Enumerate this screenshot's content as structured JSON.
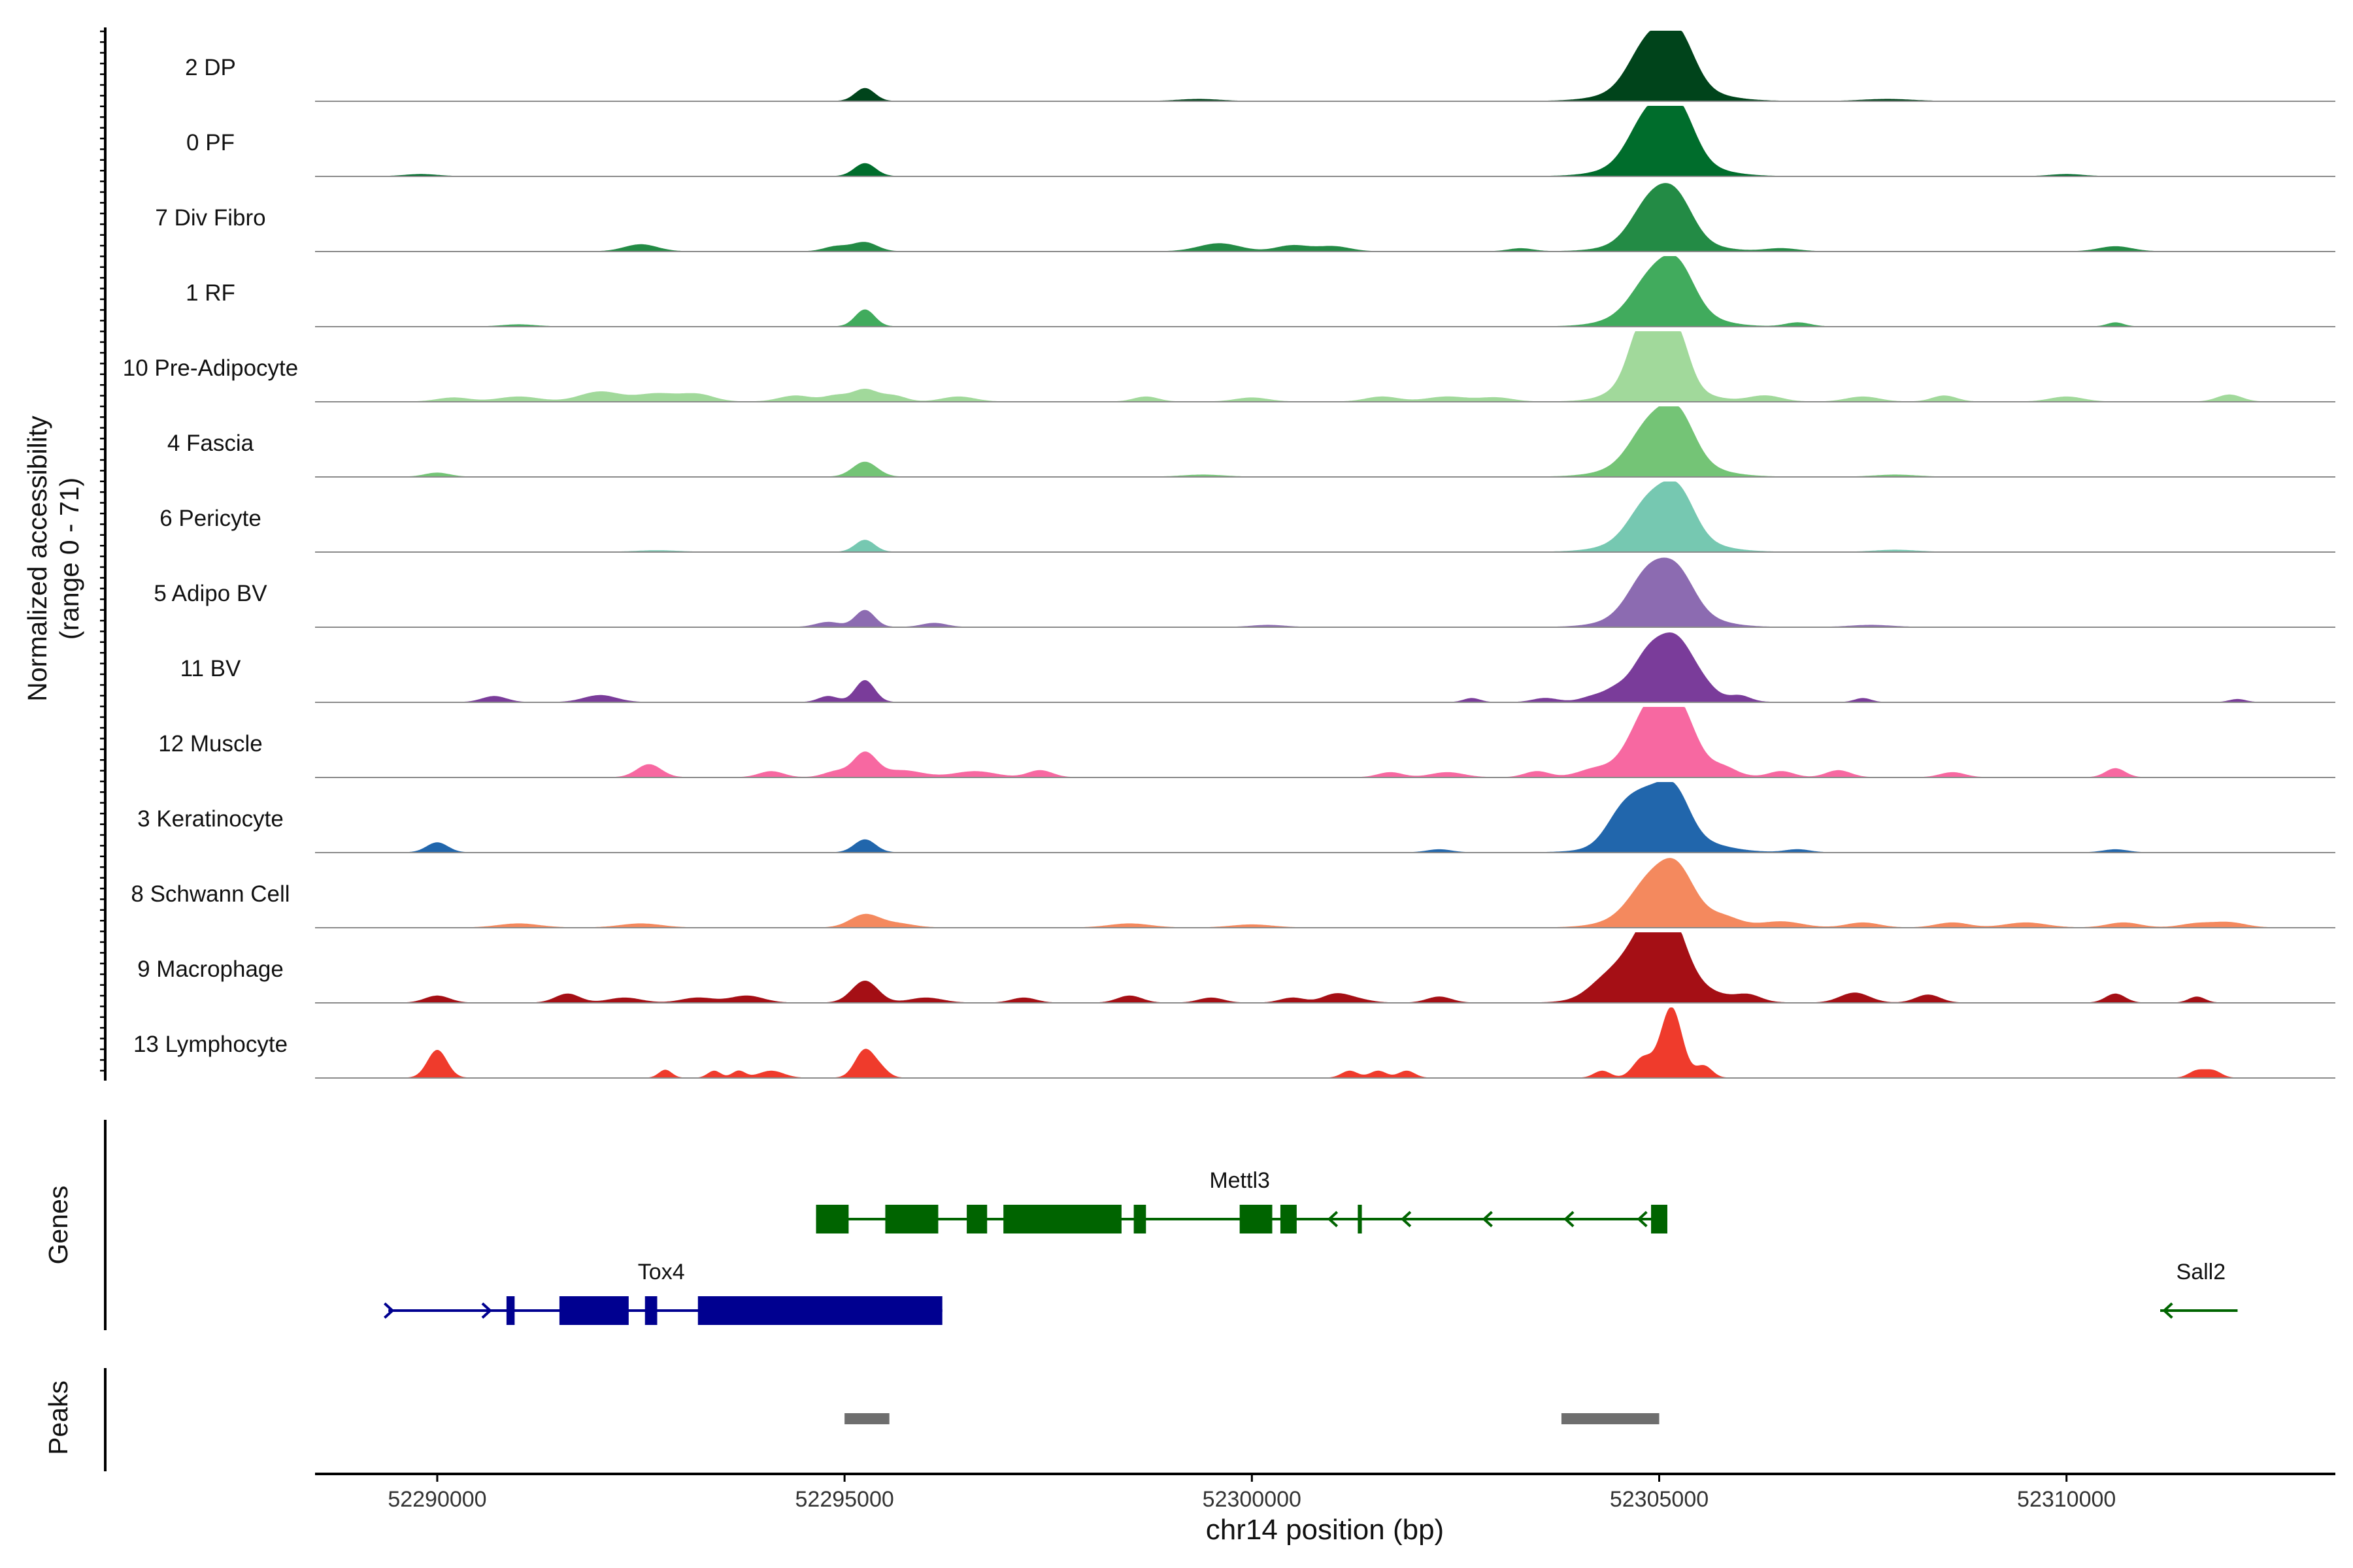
{
  "chart_data": {
    "type": "area",
    "title": "",
    "chromosome": "chr14",
    "xlabel": "chr14 position (bp)",
    "ylabel_line1": "Normalized accessibility",
    "ylabel_line2": "(range 0 - 71)",
    "y_range": [
      0,
      71
    ],
    "xlim": [
      52288500,
      52313300
    ],
    "x_ticks": [
      52290000,
      52295000,
      52300000,
      52305000,
      52310000
    ],
    "x_tick_labels": [
      "52290000",
      "52295000",
      "52300000",
      "52305000",
      "52310000"
    ],
    "panel_labels": {
      "genes": "Genes",
      "peaks": "Peaks"
    },
    "tracks": [
      {
        "name": "2 DP",
        "color": "#00441b",
        "peaks": [
          [
            52295250,
            13,
            120
          ],
          [
            52304870,
            44,
            230
          ],
          [
            52305240,
            46,
            200
          ],
          [
            52305050,
            18,
            500
          ],
          [
            52299350,
            2,
            250
          ],
          [
            52307800,
            2,
            300
          ]
        ]
      },
      {
        "name": "0 PF",
        "color": "#006d2c",
        "peaks": [
          [
            52295250,
            13,
            130
          ],
          [
            52304870,
            45,
            230
          ],
          [
            52305240,
            47,
            200
          ],
          [
            52305050,
            20,
            480
          ],
          [
            52289800,
            2,
            200
          ],
          [
            52310000,
            2,
            200
          ]
        ]
      },
      {
        "name": "7 Div Fibro",
        "color": "#238b45",
        "peaks": [
          [
            52292500,
            7,
            200
          ],
          [
            52294900,
            5,
            150
          ],
          [
            52295250,
            9,
            150
          ],
          [
            52299600,
            8,
            250
          ],
          [
            52300500,
            6,
            200
          ],
          [
            52301000,
            5,
            200
          ],
          [
            52304900,
            38,
            230
          ],
          [
            52305230,
            34,
            200
          ],
          [
            52305050,
            15,
            450
          ],
          [
            52303300,
            3,
            150
          ],
          [
            52306500,
            3,
            200
          ],
          [
            52310600,
            5,
            200
          ]
        ]
      },
      {
        "name": "1 RF",
        "color": "#41ab5d",
        "peaks": [
          [
            52295250,
            17,
            120
          ],
          [
            52304900,
            30,
            230
          ],
          [
            52305240,
            38,
            200
          ],
          [
            52305050,
            22,
            450
          ],
          [
            52306700,
            4,
            150
          ],
          [
            52310600,
            4,
            100
          ],
          [
            52291000,
            2,
            200
          ]
        ]
      },
      {
        "name": "10 Pre-Adipocyte",
        "color": "#a1d99b",
        "peaks": [
          [
            52290200,
            4,
            200
          ],
          [
            52291000,
            5,
            250
          ],
          [
            52292000,
            10,
            250
          ],
          [
            52292700,
            8,
            250
          ],
          [
            52293200,
            7,
            200
          ],
          [
            52294400,
            6,
            200
          ],
          [
            52294900,
            6,
            150
          ],
          [
            52295250,
            12,
            150
          ],
          [
            52295600,
            6,
            150
          ],
          [
            52296400,
            5,
            200
          ],
          [
            52298700,
            5,
            150
          ],
          [
            52300000,
            4,
            200
          ],
          [
            52301600,
            5,
            200
          ],
          [
            52302400,
            5,
            250
          ],
          [
            52303000,
            4,
            200
          ],
          [
            52304600,
            5,
            200
          ],
          [
            52304800,
            60,
            160
          ],
          [
            52305190,
            60,
            160
          ],
          [
            52305000,
            20,
            420
          ],
          [
            52306300,
            6,
            200
          ],
          [
            52307500,
            5,
            200
          ],
          [
            52308500,
            6,
            150
          ],
          [
            52310000,
            5,
            200
          ],
          [
            52312000,
            7,
            150
          ]
        ]
      },
      {
        "name": "4 Fascia",
        "color": "#74c476",
        "peaks": [
          [
            52290000,
            4,
            150
          ],
          [
            52295250,
            15,
            150
          ],
          [
            52304880,
            35,
            230
          ],
          [
            52305240,
            42,
            200
          ],
          [
            52305050,
            20,
            480
          ],
          [
            52299400,
            2,
            250
          ],
          [
            52307900,
            2,
            250
          ]
        ]
      },
      {
        "name": "6 Pericyte",
        "color": "#76c8b1",
        "peaks": [
          [
            52295250,
            12,
            120
          ],
          [
            52304870,
            35,
            230
          ],
          [
            52305240,
            42,
            200
          ],
          [
            52305050,
            18,
            480
          ],
          [
            52307900,
            2,
            250
          ],
          [
            52292700,
            1.5,
            250
          ]
        ]
      },
      {
        "name": "5 Adipo BV",
        "color": "#8c6bb1",
        "peaks": [
          [
            52294800,
            5,
            150
          ],
          [
            52295250,
            17,
            120
          ],
          [
            52296100,
            4,
            150
          ],
          [
            52304870,
            37,
            230
          ],
          [
            52305240,
            32,
            200
          ],
          [
            52305050,
            22,
            450
          ],
          [
            52300200,
            2,
            200
          ],
          [
            52307600,
            2,
            250
          ]
        ]
      },
      {
        "name": "11 BV",
        "color": "#7a3c9a",
        "peaks": [
          [
            52290700,
            6,
            150
          ],
          [
            52292000,
            7,
            200
          ],
          [
            52294800,
            6,
            120
          ],
          [
            52295250,
            22,
            120
          ],
          [
            52302700,
            4,
            100
          ],
          [
            52303600,
            4,
            150
          ],
          [
            52304200,
            4,
            150
          ],
          [
            52304450,
            5,
            120
          ],
          [
            52304870,
            33,
            200
          ],
          [
            52305230,
            43,
            200
          ],
          [
            52305050,
            18,
            450
          ],
          [
            52305550,
            6,
            150
          ],
          [
            52306000,
            5,
            120
          ],
          [
            52307500,
            4,
            100
          ],
          [
            52312100,
            3,
            100
          ]
        ]
      },
      {
        "name": "12 Muscle",
        "color": "#f768a1",
        "peaks": [
          [
            52292600,
            13,
            150
          ],
          [
            52294100,
            6,
            150
          ],
          [
            52294900,
            6,
            150
          ],
          [
            52295250,
            24,
            140
          ],
          [
            52295700,
            7,
            250
          ],
          [
            52296600,
            6,
            250
          ],
          [
            52297400,
            7,
            150
          ],
          [
            52301700,
            5,
            150
          ],
          [
            52302400,
            5,
            200
          ],
          [
            52303500,
            6,
            150
          ],
          [
            52304200,
            6,
            200
          ],
          [
            52304600,
            5,
            150
          ],
          [
            52304880,
            48,
            200
          ],
          [
            52305230,
            52,
            200
          ],
          [
            52305050,
            22,
            450
          ],
          [
            52305800,
            6,
            150
          ],
          [
            52306500,
            6,
            150
          ],
          [
            52307200,
            7,
            150
          ],
          [
            52308600,
            5,
            150
          ],
          [
            52310600,
            9,
            120
          ]
        ]
      },
      {
        "name": "3 Keratinocyte",
        "color": "#2166ac",
        "peaks": [
          [
            52290000,
            10,
            130
          ],
          [
            52295250,
            13,
            130
          ],
          [
            52304550,
            30,
            200
          ],
          [
            52304880,
            33,
            200
          ],
          [
            52305200,
            40,
            180
          ],
          [
            52305050,
            20,
            500
          ],
          [
            52302300,
            3,
            150
          ],
          [
            52306700,
            3,
            150
          ],
          [
            52310600,
            3,
            150
          ]
        ]
      },
      {
        "name": "8 Schwann Cell",
        "color": "#f4895e",
        "peaks": [
          [
            52291000,
            4,
            250
          ],
          [
            52295250,
            13,
            180
          ],
          [
            52295650,
            4,
            200
          ],
          [
            52304880,
            28,
            230
          ],
          [
            52305230,
            37,
            200
          ],
          [
            52305050,
            22,
            450
          ],
          [
            52305800,
            7,
            200
          ],
          [
            52306500,
            6,
            250
          ],
          [
            52307500,
            5,
            200
          ],
          [
            52308600,
            5,
            200
          ],
          [
            52309500,
            5,
            250
          ],
          [
            52310700,
            5,
            200
          ],
          [
            52311600,
            4,
            200
          ],
          [
            52312000,
            5,
            200
          ],
          [
            52292500,
            4,
            250
          ],
          [
            52298500,
            4,
            250
          ],
          [
            52300000,
            3,
            250
          ]
        ]
      },
      {
        "name": "9 Macrophage",
        "color": "#a50f15",
        "peaks": [
          [
            52290000,
            7,
            150
          ],
          [
            52291600,
            9,
            150
          ],
          [
            52292300,
            5,
            200
          ],
          [
            52293200,
            5,
            200
          ],
          [
            52293800,
            7,
            200
          ],
          [
            52295250,
            22,
            160
          ],
          [
            52296000,
            5,
            200
          ],
          [
            52297200,
            5,
            150
          ],
          [
            52298500,
            7,
            150
          ],
          [
            52299500,
            5,
            150
          ],
          [
            52300500,
            5,
            150
          ],
          [
            52301000,
            6,
            150
          ],
          [
            52301200,
            5,
            200
          ],
          [
            52302300,
            6,
            150
          ],
          [
            52304300,
            8,
            200
          ],
          [
            52304600,
            16,
            300
          ],
          [
            52304870,
            38,
            230
          ],
          [
            52305130,
            50,
            200
          ],
          [
            52305050,
            25,
            500
          ],
          [
            52306100,
            6,
            150
          ],
          [
            52307400,
            10,
            180
          ],
          [
            52308300,
            8,
            150
          ],
          [
            52310600,
            9,
            120
          ],
          [
            52311600,
            6,
            100
          ]
        ]
      },
      {
        "name": "13 Lymphocyte",
        "color": "#ef3b2c",
        "peaks": [
          [
            52290000,
            28,
            120
          ],
          [
            52292800,
            8,
            80
          ],
          [
            52293400,
            7,
            80
          ],
          [
            52293700,
            7,
            80
          ],
          [
            52294100,
            7,
            150
          ],
          [
            52295250,
            28,
            120
          ],
          [
            52295450,
            7,
            100
          ],
          [
            52301200,
            7,
            100
          ],
          [
            52301550,
            7,
            100
          ],
          [
            52301900,
            7,
            100
          ],
          [
            52304300,
            7,
            100
          ],
          [
            52304800,
            20,
            120
          ],
          [
            52305150,
            71,
            130
          ],
          [
            52305550,
            12,
            100
          ],
          [
            52311600,
            7,
            100
          ],
          [
            52311800,
            7,
            100
          ]
        ]
      }
    ],
    "genes": [
      {
        "name": "Mettl3",
        "strand": "-",
        "color": "#006400",
        "row": 1,
        "start": 52294650,
        "end": 52305100,
        "label_pos": 52299850,
        "exons": [
          [
            52294650,
            52295050
          ],
          [
            52295500,
            52296150
          ],
          [
            52296500,
            52296750
          ],
          [
            52296950,
            52298400
          ],
          [
            52298550,
            52298700
          ],
          [
            52299850,
            52300250
          ],
          [
            52300350,
            52300550
          ],
          [
            52301300,
            52301350
          ],
          [
            52304900,
            52305100
          ]
        ],
        "arrows": [
          52300950,
          52301850,
          52302850,
          52303850,
          52304750
        ]
      },
      {
        "name": "Tox4",
        "strand": "+",
        "color": "#000090",
        "row": 2,
        "start": 52289400,
        "end": 52296200,
        "label_pos": 52292750,
        "exons": [
          [
            52290850,
            52290950
          ],
          [
            52291500,
            52292350
          ],
          [
            52292550,
            52292700
          ],
          [
            52293200,
            52296200
          ]
        ],
        "arrows": [
          52289450,
          52290650
        ]
      },
      {
        "name": "Sall2",
        "strand": "-",
        "color": "#006400",
        "row": 2,
        "start": 52311150,
        "end": 52312100,
        "label_pos": 52311650,
        "exons": [],
        "arrows": [
          52311200
        ]
      }
    ],
    "peaks_track": [
      [
        52295000,
        52295550
      ],
      [
        52303800,
        52305000
      ]
    ]
  }
}
